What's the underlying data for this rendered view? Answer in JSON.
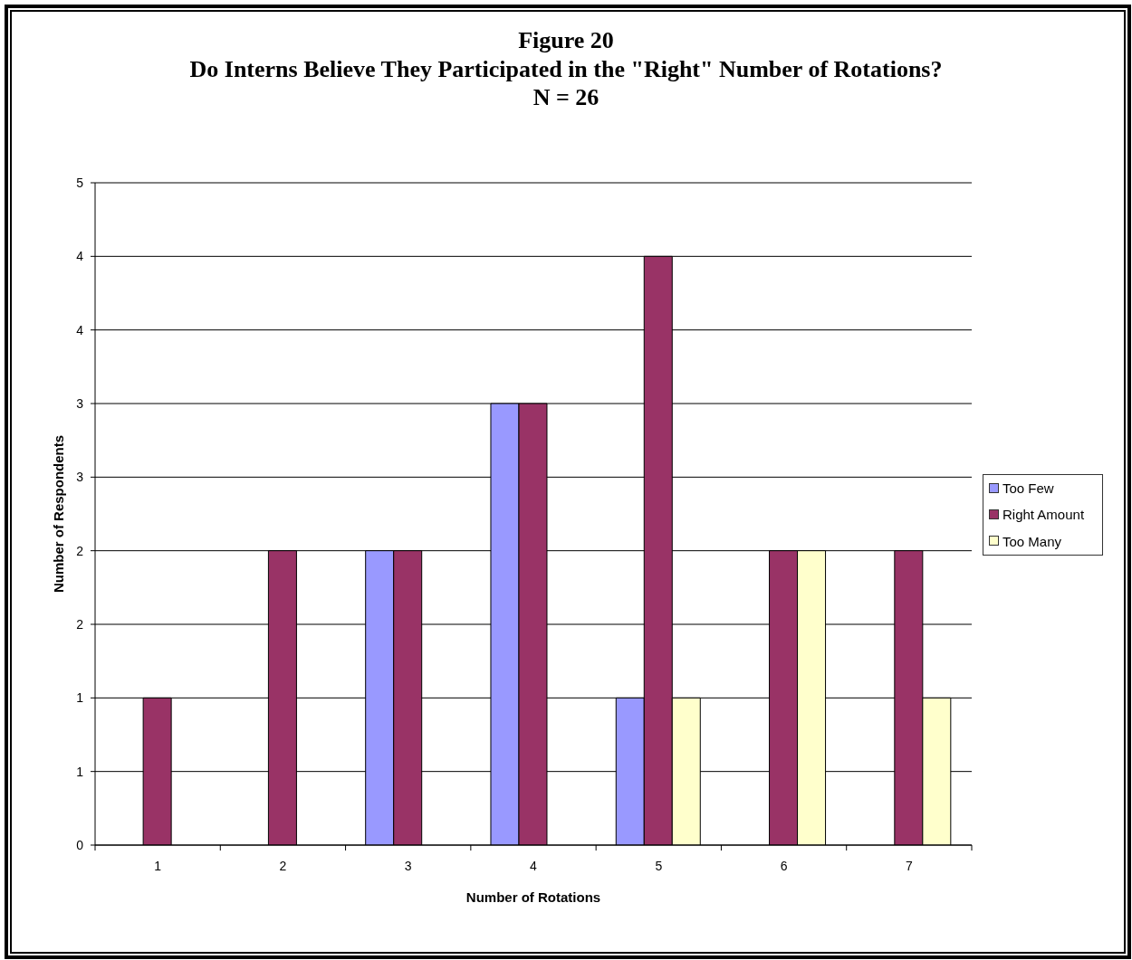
{
  "chart_data": {
    "type": "bar",
    "title": "Figure 20\nDo Interns Believe They Participated in the \"Right\" Number of Rotations?\nN = 26",
    "xlabel": "Number of Rotations",
    "ylabel": "Number of Respondents",
    "categories": [
      "1",
      "2",
      "3",
      "4",
      "5",
      "6",
      "7"
    ],
    "series": [
      {
        "name": "Too Few",
        "color": "#9999ff",
        "values": [
          0,
          0,
          2,
          3,
          1,
          0,
          0
        ]
      },
      {
        "name": "Right Amount",
        "color": "#993366",
        "values": [
          1,
          2,
          2,
          3,
          4,
          2,
          2
        ]
      },
      {
        "name": "Too Many",
        "color": "#ffffcc",
        "values": [
          0,
          0,
          0,
          0,
          1,
          2,
          1
        ]
      }
    ],
    "ylim": [
      0,
      4.5
    ],
    "yticks": [
      0,
      {
        "value": 0.5,
        "label": "1"
      },
      1,
      {
        "value": 1.5,
        "label": "2"
      },
      2,
      {
        "value": 2.5,
        "label": "3"
      },
      3,
      {
        "value": 3.5,
        "label": "4"
      },
      4,
      {
        "value": 4.5,
        "label": "5"
      }
    ],
    "grid": "y",
    "legend": "right"
  }
}
